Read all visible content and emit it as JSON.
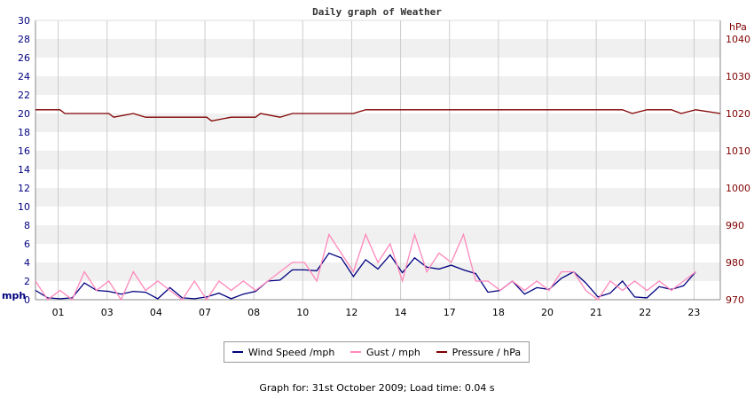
{
  "chart_data": {
    "type": "line",
    "title": "Daily graph of Weather",
    "y_left": {
      "unit": "mph",
      "ticks": [
        0,
        2,
        4,
        6,
        8,
        10,
        12,
        14,
        16,
        18,
        20,
        22,
        24,
        26,
        28,
        30
      ],
      "range": [
        0,
        30
      ]
    },
    "y_right": {
      "unit": "hPa",
      "ticks": [
        970,
        980,
        990,
        1000,
        1010,
        1020,
        1030,
        1040
      ],
      "range": [
        970,
        1045
      ]
    },
    "x_tick_labels": [
      "01",
      "03",
      "04",
      "07",
      "08",
      "10",
      "12",
      "14",
      "17",
      "18",
      "20",
      "21",
      "22",
      "23"
    ],
    "x_hours_range": [
      0,
      24
    ],
    "grid": true,
    "legend_position": "bottom",
    "series": [
      {
        "name": "Wind Speed /mph",
        "axis": "left",
        "color": "#000080",
        "points": [
          [
            0,
            1
          ],
          [
            0.5,
            0.2
          ],
          [
            1,
            0.1
          ],
          [
            1.5,
            0.2
          ],
          [
            2,
            1.8
          ],
          [
            2.5,
            1
          ],
          [
            3,
            0.9
          ],
          [
            3.5,
            0.6
          ],
          [
            4,
            0.9
          ],
          [
            4.5,
            0.8
          ],
          [
            5,
            0.1
          ],
          [
            5.5,
            1.3
          ],
          [
            6,
            0.2
          ],
          [
            6.5,
            0.1
          ],
          [
            7,
            0.3
          ],
          [
            7.5,
            0.7
          ],
          [
            8,
            0.1
          ],
          [
            8.5,
            0.6
          ],
          [
            9,
            0.9
          ],
          [
            9.5,
            2
          ],
          [
            10,
            2.1
          ],
          [
            10.5,
            3.2
          ],
          [
            11,
            3.2
          ],
          [
            11.5,
            3.1
          ],
          [
            12,
            5
          ],
          [
            12.5,
            4.5
          ],
          [
            13,
            2.5
          ],
          [
            13.5,
            4.3
          ],
          [
            14,
            3.3
          ],
          [
            14.5,
            4.8
          ],
          [
            15,
            2.9
          ],
          [
            15.5,
            4.5
          ],
          [
            16,
            3.5
          ],
          [
            16.5,
            3.3
          ],
          [
            17,
            3.7
          ],
          [
            17.5,
            3.2
          ],
          [
            18,
            2.8
          ],
          [
            18.5,
            0.8
          ],
          [
            19,
            1
          ],
          [
            19.5,
            2
          ],
          [
            20,
            0.6
          ],
          [
            20.5,
            1.3
          ],
          [
            21,
            1.1
          ],
          [
            21.5,
            2.3
          ],
          [
            22,
            3
          ],
          [
            22.5,
            1.8
          ],
          [
            23,
            0.3
          ],
          [
            23.5,
            0.7
          ],
          [
            24,
            2
          ],
          [
            24.5,
            0.3
          ],
          [
            25,
            0.2
          ],
          [
            25.5,
            1.4
          ],
          [
            26,
            1.1
          ],
          [
            26.5,
            1.5
          ],
          [
            27,
            3
          ]
        ]
      },
      {
        "name": "Gust / mph",
        "axis": "left",
        "color": "#ff88bb",
        "points": [
          [
            0,
            2
          ],
          [
            0.5,
            0
          ],
          [
            1,
            1
          ],
          [
            1.5,
            0
          ],
          [
            2,
            3
          ],
          [
            2.5,
            1
          ],
          [
            3,
            2
          ],
          [
            3.5,
            0
          ],
          [
            4,
            3
          ],
          [
            4.5,
            1
          ],
          [
            5,
            2
          ],
          [
            5.5,
            1
          ],
          [
            6,
            0
          ],
          [
            6.5,
            2
          ],
          [
            7,
            0
          ],
          [
            7.5,
            2
          ],
          [
            8,
            1
          ],
          [
            8.5,
            2
          ],
          [
            9,
            1
          ],
          [
            9.5,
            2
          ],
          [
            10,
            3
          ],
          [
            10.5,
            4
          ],
          [
            11,
            4
          ],
          [
            11.5,
            2
          ],
          [
            12,
            7
          ],
          [
            12.5,
            5
          ],
          [
            13,
            3
          ],
          [
            13.5,
            7
          ],
          [
            14,
            4
          ],
          [
            14.5,
            6
          ],
          [
            15,
            2
          ],
          [
            15.5,
            7
          ],
          [
            16,
            3
          ],
          [
            16.5,
            5
          ],
          [
            17,
            4
          ],
          [
            17.5,
            7
          ],
          [
            18,
            2
          ],
          [
            18.5,
            2
          ],
          [
            19,
            1
          ],
          [
            19.5,
            2
          ],
          [
            20,
            1
          ],
          [
            20.5,
            2
          ],
          [
            21,
            1
          ],
          [
            21.5,
            3
          ],
          [
            22,
            3
          ],
          [
            22.5,
            1
          ],
          [
            23,
            0
          ],
          [
            23.5,
            2
          ],
          [
            24,
            1
          ],
          [
            24.5,
            2
          ],
          [
            25,
            1
          ],
          [
            25.5,
            2
          ],
          [
            26,
            1
          ],
          [
            26.5,
            2
          ],
          [
            27,
            3
          ]
        ]
      },
      {
        "name": "Pressure / hPa",
        "axis": "right",
        "color": "#800000",
        "points": [
          [
            0,
            1021
          ],
          [
            1,
            1021
          ],
          [
            1.2,
            1020
          ],
          [
            2,
            1020
          ],
          [
            3,
            1020
          ],
          [
            3.2,
            1019
          ],
          [
            4,
            1020
          ],
          [
            4.5,
            1019
          ],
          [
            5,
            1019
          ],
          [
            6,
            1019
          ],
          [
            7,
            1019
          ],
          [
            7.2,
            1018
          ],
          [
            8,
            1019
          ],
          [
            9,
            1019
          ],
          [
            9.2,
            1020
          ],
          [
            10,
            1019
          ],
          [
            10.5,
            1020
          ],
          [
            11,
            1020
          ],
          [
            12,
            1020
          ],
          [
            13,
            1020
          ],
          [
            13.5,
            1021
          ],
          [
            14,
            1021
          ],
          [
            15,
            1021
          ],
          [
            16,
            1021
          ],
          [
            17,
            1021
          ],
          [
            18,
            1021
          ],
          [
            19,
            1021
          ],
          [
            20,
            1021
          ],
          [
            21,
            1021
          ],
          [
            22,
            1021
          ],
          [
            23,
            1021
          ],
          [
            24,
            1021
          ],
          [
            24.4,
            1020
          ],
          [
            25,
            1021
          ],
          [
            26,
            1021
          ],
          [
            26.4,
            1020
          ],
          [
            27,
            1021
          ],
          [
            28,
            1020
          ]
        ]
      }
    ]
  },
  "footer": "Graph for: 31st October 2009; Load time: 0.04 s"
}
